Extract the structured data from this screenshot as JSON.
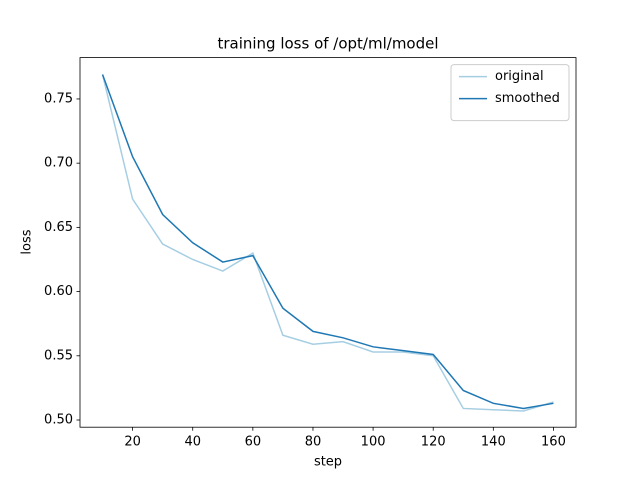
{
  "chart_data": {
    "type": "line",
    "title": "training loss of /opt/ml/model",
    "x_label": "step",
    "y_label": "loss",
    "x": [
      10,
      20,
      30,
      40,
      50,
      60,
      70,
      80,
      90,
      100,
      110,
      120,
      130,
      140,
      150,
      160
    ],
    "series": [
      {
        "name": "original",
        "color": "#a6cee3",
        "values": [
          0.769,
          0.672,
          0.637,
          0.625,
          0.616,
          0.63,
          0.566,
          0.559,
          0.561,
          0.553,
          0.553,
          0.55,
          0.509,
          0.508,
          0.507,
          0.514
        ]
      },
      {
        "name": "smoothed",
        "color": "#1f78b4",
        "values": [
          0.769,
          0.705,
          0.66,
          0.638,
          0.623,
          0.628,
          0.587,
          0.569,
          0.564,
          0.557,
          0.554,
          0.551,
          0.523,
          0.513,
          0.509,
          0.513
        ]
      }
    ],
    "xlim": [
      2.5,
      167.5
    ],
    "xticks": [
      20,
      40,
      60,
      80,
      100,
      120,
      140,
      160
    ],
    "ylim": [
      0.4944,
      0.7822
    ],
    "yticks": [
      {
        "value": 0.5,
        "label": "0.50"
      },
      0.55,
      {
        "value": 0.6,
        "label": "0.60"
      },
      0.65,
      {
        "value": 0.7,
        "label": "0.70"
      },
      0.75
    ],
    "grid": false,
    "legend_position": "upper right"
  }
}
